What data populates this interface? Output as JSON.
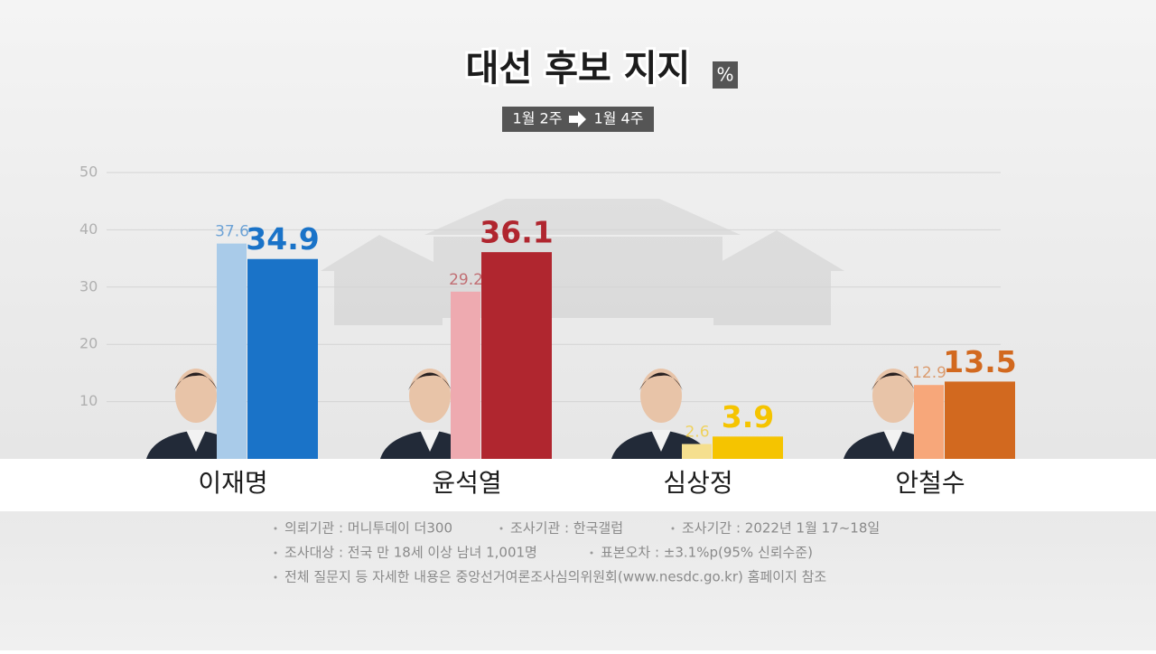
{
  "chart_data": {
    "type": "bar",
    "title": "대선 후보 지지",
    "unit": "%",
    "categories": [
      "이재명",
      "윤석열",
      "심상정",
      "안철수"
    ],
    "series": [
      {
        "name": "1월 2주",
        "colors": [
          "#a9cbe9",
          "#eeaab0",
          "#f5df8e",
          "#f7a77a"
        ],
        "values": [
          37.6,
          29.2,
          2.6,
          12.9
        ]
      },
      {
        "name": "1월 4주",
        "colors": [
          "#1a73c8",
          "#b0262f",
          "#f5c400",
          "#d2691f"
        ],
        "values": [
          34.9,
          36.1,
          3.9,
          13.5
        ]
      }
    ],
    "ylim": [
      0,
      50
    ],
    "yticks": [
      10,
      20,
      30,
      40,
      50
    ],
    "grid": true,
    "notes": [
      [
        "의뢰기관 : 머니투데이 더300",
        "조사기관 : 한국갤럽",
        "조사기간 : 2022년 1월 17~18일"
      ],
      [
        "조사대상 : 전국 만 18세 이상 남녀 1,001명",
        "표본오차 : ±3.1%p(95% 신뢰수준)"
      ],
      [
        "전체 질문지 등 자세한 내용은 중앙선거여론조사심의위원회(www.nesdc.go.kr) 홈페이지 참조"
      ]
    ]
  }
}
